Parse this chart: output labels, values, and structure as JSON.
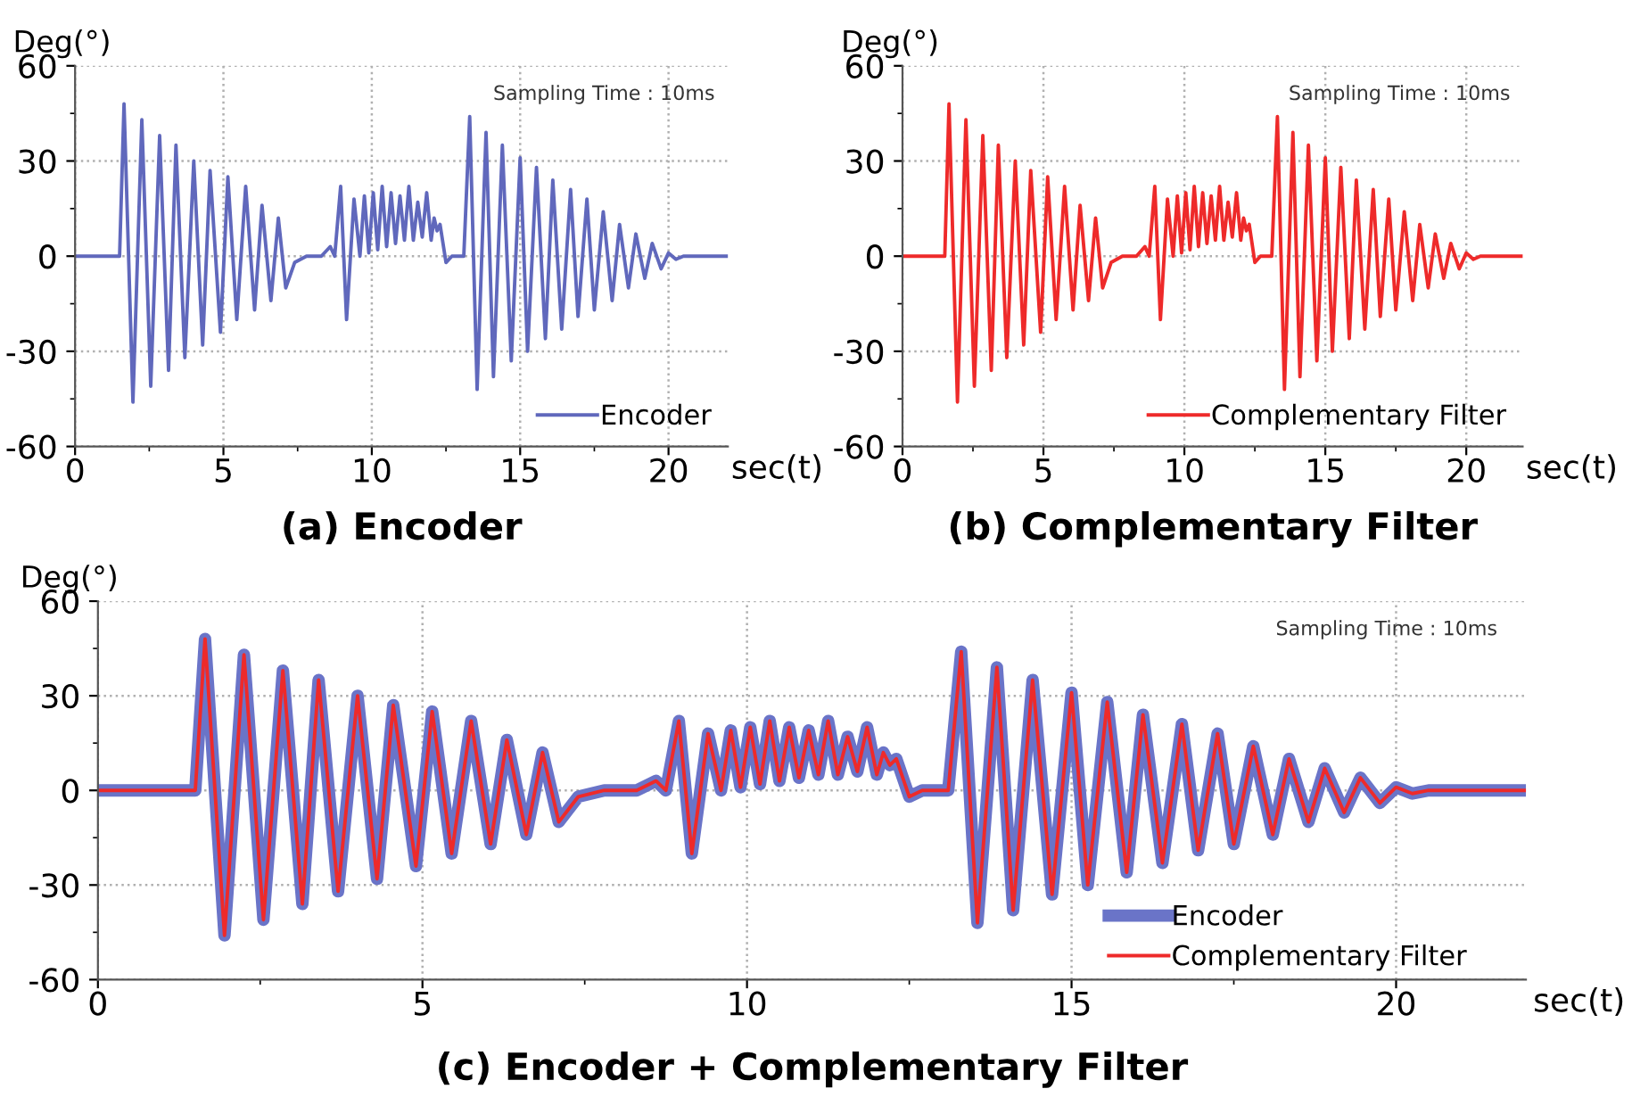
{
  "chart_data": [
    {
      "type": "line",
      "title": "(a) Encoder",
      "xlabel": "sec(t)",
      "ylabel": "Deg(°)",
      "annotations": [
        "Sampling Time : 10ms"
      ],
      "x": [
        0,
        1.5,
        1.65,
        1.95,
        2.25,
        2.55,
        2.85,
        3.15,
        3.4,
        3.7,
        4.0,
        4.3,
        4.55,
        4.9,
        5.15,
        5.45,
        5.75,
        6.05,
        6.3,
        6.6,
        6.85,
        7.1,
        7.4,
        7.8,
        8.3,
        8.6,
        8.75,
        8.95,
        9.15,
        9.4,
        9.6,
        9.75,
        9.9,
        10.05,
        10.2,
        10.35,
        10.5,
        10.65,
        10.8,
        10.95,
        11.1,
        11.25,
        11.4,
        11.55,
        11.7,
        11.85,
        12.0,
        12.1,
        12.2,
        12.3,
        12.5,
        12.7,
        13.1,
        13.3,
        13.55,
        13.85,
        14.1,
        14.4,
        14.7,
        15.0,
        15.25,
        15.55,
        15.85,
        16.1,
        16.4,
        16.7,
        16.95,
        17.25,
        17.5,
        17.8,
        18.1,
        18.35,
        18.65,
        18.9,
        19.2,
        19.45,
        19.75,
        20.0,
        20.25,
        20.5,
        22
      ],
      "series": [
        {
          "name": "Encoder",
          "color": "#6068bc",
          "values": [
            0,
            0,
            48,
            -46,
            43,
            -41,
            38,
            -36,
            35,
            -32,
            30,
            -28,
            27,
            -24,
            25,
            -20,
            22,
            -17,
            16,
            -14,
            12,
            -10,
            -2,
            0,
            0,
            3,
            0,
            22,
            -20,
            18,
            0,
            19,
            1,
            20,
            2,
            22,
            3,
            20,
            4,
            19,
            5,
            22,
            5,
            17,
            6,
            20,
            5,
            12,
            8,
            10,
            -2,
            0,
            0,
            44,
            -42,
            39,
            -38,
            35,
            -33,
            31,
            -30,
            28,
            -26,
            24,
            -23,
            21,
            -19,
            18,
            -17,
            14,
            -14,
            10,
            -10,
            7,
            -7,
            4,
            -4,
            1,
            -1,
            0,
            0
          ]
        }
      ],
      "xlim": [
        0,
        22
      ],
      "ylim": [
        -60,
        60
      ],
      "xticks": [
        0,
        5,
        10,
        15,
        20
      ],
      "yticks": [
        -60,
        -30,
        0,
        30,
        60
      ],
      "grid": true,
      "legend": "bottom right",
      "marker": "none",
      "line_style": "solid"
    },
    {
      "type": "line",
      "title": "(b) Complementary Filter",
      "xlabel": "sec(t)",
      "ylabel": "Deg(°)",
      "annotations": [
        "Sampling Time : 10ms"
      ],
      "x": [
        0,
        1.5,
        1.65,
        1.95,
        2.25,
        2.55,
        2.85,
        3.15,
        3.4,
        3.7,
        4.0,
        4.3,
        4.55,
        4.9,
        5.15,
        5.45,
        5.75,
        6.05,
        6.3,
        6.6,
        6.85,
        7.1,
        7.4,
        7.8,
        8.3,
        8.6,
        8.75,
        8.95,
        9.15,
        9.4,
        9.6,
        9.75,
        9.9,
        10.05,
        10.2,
        10.35,
        10.5,
        10.65,
        10.8,
        10.95,
        11.1,
        11.25,
        11.4,
        11.55,
        11.7,
        11.85,
        12.0,
        12.1,
        12.2,
        12.3,
        12.5,
        12.7,
        13.1,
        13.3,
        13.55,
        13.85,
        14.1,
        14.4,
        14.7,
        15.0,
        15.25,
        15.55,
        15.85,
        16.1,
        16.4,
        16.7,
        16.95,
        17.25,
        17.5,
        17.8,
        18.1,
        18.35,
        18.65,
        18.9,
        19.2,
        19.45,
        19.75,
        20.0,
        20.25,
        20.5,
        22
      ],
      "series": [
        {
          "name": "Complementary Filter",
          "color": "#ee2a2a",
          "values": [
            0,
            0,
            48,
            -46,
            43,
            -41,
            38,
            -36,
            35,
            -32,
            30,
            -28,
            27,
            -24,
            25,
            -20,
            22,
            -17,
            16,
            -14,
            12,
            -10,
            -2,
            0,
            0,
            3,
            0,
            22,
            -20,
            18,
            0,
            19,
            1,
            20,
            2,
            22,
            3,
            20,
            4,
            19,
            5,
            22,
            5,
            17,
            6,
            20,
            5,
            12,
            8,
            10,
            -2,
            0,
            0,
            44,
            -42,
            39,
            -38,
            35,
            -33,
            31,
            -30,
            28,
            -26,
            24,
            -23,
            21,
            -19,
            18,
            -17,
            14,
            -14,
            10,
            -10,
            7,
            -7,
            4,
            -4,
            1,
            -1,
            0,
            0
          ]
        }
      ],
      "xlim": [
        0,
        22
      ],
      "ylim": [
        -60,
        60
      ],
      "xticks": [
        0,
        5,
        10,
        15,
        20
      ],
      "yticks": [
        -60,
        -30,
        0,
        30,
        60
      ],
      "grid": true,
      "legend": "bottom right",
      "marker": "none",
      "line_style": "solid"
    },
    {
      "type": "line",
      "title": "(c) Encoder + Complementary Filter",
      "xlabel": "sec(t)",
      "ylabel": "Deg(°)",
      "annotations": [
        "Sampling Time : 10ms"
      ],
      "x": [
        0,
        1.5,
        1.65,
        1.95,
        2.25,
        2.55,
        2.85,
        3.15,
        3.4,
        3.7,
        4.0,
        4.3,
        4.55,
        4.9,
        5.15,
        5.45,
        5.75,
        6.05,
        6.3,
        6.6,
        6.85,
        7.1,
        7.4,
        7.8,
        8.3,
        8.6,
        8.75,
        8.95,
        9.15,
        9.4,
        9.6,
        9.75,
        9.9,
        10.05,
        10.2,
        10.35,
        10.5,
        10.65,
        10.8,
        10.95,
        11.1,
        11.25,
        11.4,
        11.55,
        11.7,
        11.85,
        12.0,
        12.1,
        12.2,
        12.3,
        12.5,
        12.7,
        13.1,
        13.3,
        13.55,
        13.85,
        14.1,
        14.4,
        14.7,
        15.0,
        15.25,
        15.55,
        15.85,
        16.1,
        16.4,
        16.7,
        16.95,
        17.25,
        17.5,
        17.8,
        18.1,
        18.35,
        18.65,
        18.9,
        19.2,
        19.45,
        19.75,
        20.0,
        20.25,
        20.5,
        22
      ],
      "series": [
        {
          "name": "Encoder",
          "color": "#6a74c8",
          "values": [
            0,
            0,
            48,
            -46,
            43,
            -41,
            38,
            -36,
            35,
            -32,
            30,
            -28,
            27,
            -24,
            25,
            -20,
            22,
            -17,
            16,
            -14,
            12,
            -10,
            -2,
            0,
            0,
            3,
            0,
            22,
            -20,
            18,
            0,
            19,
            1,
            20,
            2,
            22,
            3,
            20,
            4,
            19,
            5,
            22,
            5,
            17,
            6,
            20,
            5,
            12,
            8,
            10,
            -2,
            0,
            0,
            44,
            -42,
            39,
            -38,
            35,
            -33,
            31,
            -30,
            28,
            -26,
            24,
            -23,
            21,
            -19,
            18,
            -17,
            14,
            -14,
            10,
            -10,
            7,
            -7,
            4,
            -4,
            1,
            -1,
            0,
            0
          ]
        },
        {
          "name": "Complementary Filter",
          "color": "#ee2a2a",
          "values": [
            0,
            0,
            48,
            -46,
            43,
            -41,
            38,
            -36,
            35,
            -32,
            30,
            -28,
            27,
            -24,
            25,
            -20,
            22,
            -17,
            16,
            -14,
            12,
            -10,
            -2,
            0,
            0,
            3,
            0,
            22,
            -20,
            18,
            0,
            19,
            1,
            20,
            2,
            22,
            3,
            20,
            4,
            19,
            5,
            22,
            5,
            17,
            6,
            20,
            5,
            12,
            8,
            10,
            -2,
            0,
            0,
            44,
            -42,
            39,
            -38,
            35,
            -33,
            31,
            -30,
            28,
            -26,
            24,
            -23,
            21,
            -19,
            18,
            -17,
            14,
            -14,
            10,
            -10,
            7,
            -7,
            4,
            -4,
            1,
            -1,
            0,
            0
          ]
        }
      ],
      "xlim": [
        0,
        22
      ],
      "ylim": [
        -60,
        60
      ],
      "xticks": [
        0,
        5,
        10,
        15,
        20
      ],
      "yticks": [
        -60,
        -30,
        0,
        30,
        60
      ],
      "grid": true,
      "legend": "bottom right",
      "marker": "none",
      "line_style": "solid"
    }
  ]
}
